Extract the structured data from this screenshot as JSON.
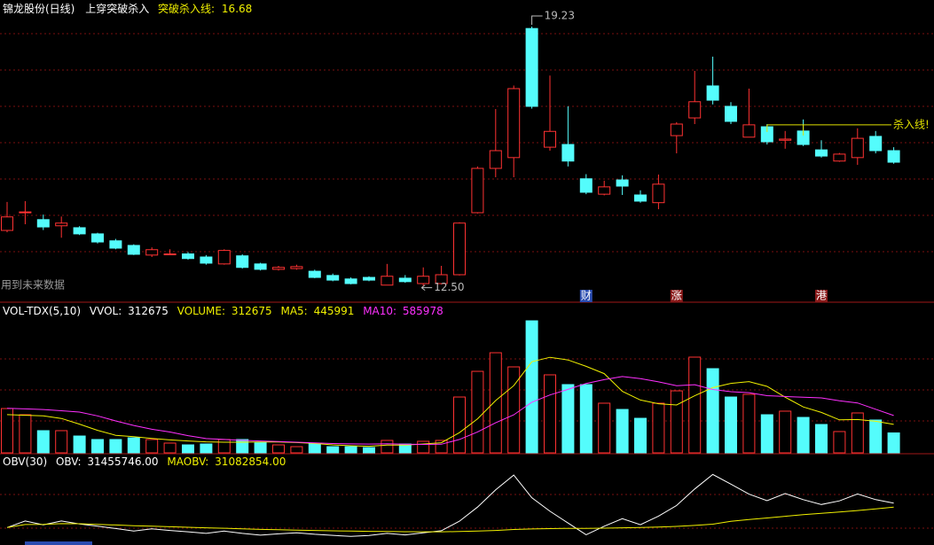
{
  "chart_data": [
    {
      "type": "candlestick",
      "title": "锦龙股份(日线)",
      "indicator": "上穿突破杀入",
      "kill_line_label": "突破杀入线:",
      "kill_line": 16.68,
      "kill_line_text": "杀入线!",
      "note": "用到未来数据",
      "high_label": "19.23",
      "low_label": "12.50",
      "up_color": "#ff3232",
      "down_color": "#54fcfc",
      "ylim": [
        12.1,
        19.92
      ],
      "open": [
        13.94,
        14.4,
        14.22,
        14.06,
        14.01,
        13.85,
        13.67,
        13.55,
        13.3,
        13.32,
        13.33,
        13.25,
        13.07,
        13.28,
        13.07,
        12.93,
        12.95,
        12.88,
        12.77,
        12.68,
        12.72,
        12.52,
        12.7,
        12.56,
        12.56,
        12.79,
        14.4,
        15.55,
        15.83,
        19.18,
        16.1,
        16.17,
        15.28,
        14.88,
        15.25,
        14.86,
        14.66,
        16.4,
        16.86,
        17.69,
        17.16,
        16.36,
        16.63,
        16.28,
        16.52,
        16.03,
        15.74,
        15.83,
        16.38,
        16.01
      ],
      "high": [
        14.68,
        14.7,
        14.35,
        14.3,
        14.05,
        13.88,
        13.72,
        13.58,
        13.5,
        13.45,
        13.38,
        13.3,
        13.45,
        13.32,
        13.1,
        13.02,
        13.05,
        12.92,
        12.82,
        12.72,
        12.75,
        13.07,
        12.78,
        12.98,
        13.02,
        14.15,
        15.6,
        17.09,
        17.7,
        19.23,
        17.96,
        17.16,
        15.4,
        15.23,
        15.37,
        14.98,
        15.39,
        16.75,
        18.08,
        18.45,
        17.27,
        17.62,
        16.7,
        16.52,
        16.82,
        16.28,
        15.95,
        16.59,
        16.52,
        16.1
      ],
      "low": [
        13.89,
        14.1,
        13.95,
        13.75,
        13.82,
        13.6,
        13.45,
        13.3,
        13.25,
        13.3,
        13.18,
        13.05,
        13.05,
        12.95,
        12.9,
        12.9,
        12.92,
        12.7,
        12.62,
        12.54,
        12.62,
        12.52,
        12.58,
        12.5,
        12.54,
        12.77,
        14.38,
        15.32,
        15.32,
        17.1,
        16.01,
        15.6,
        14.88,
        14.85,
        14.86,
        14.66,
        14.49,
        15.94,
        16.7,
        17.21,
        16.7,
        16.36,
        16.17,
        16.06,
        16.13,
        15.83,
        15.72,
        15.64,
        15.94,
        15.67
      ],
      "close": [
        14.29,
        14.42,
        14.03,
        14.13,
        13.85,
        13.64,
        13.48,
        13.32,
        13.44,
        13.33,
        13.21,
        13.09,
        13.42,
        12.98,
        12.93,
        12.98,
        13.0,
        12.72,
        12.65,
        12.56,
        12.65,
        12.75,
        12.61,
        12.75,
        12.79,
        14.13,
        15.55,
        16.01,
        17.62,
        17.16,
        16.51,
        15.74,
        14.93,
        15.07,
        15.09,
        14.7,
        15.14,
        16.7,
        17.28,
        17.32,
        16.77,
        16.68,
        16.24,
        16.31,
        16.17,
        15.87,
        15.92,
        16.33,
        16.01,
        15.71
      ],
      "events": [
        null,
        null,
        null,
        null,
        null,
        null,
        null,
        null,
        null,
        null,
        null,
        null,
        null,
        null,
        null,
        null,
        null,
        null,
        null,
        null,
        null,
        null,
        null,
        null,
        null,
        null,
        null,
        null,
        null,
        null,
        null,
        null,
        {
          "label": "财",
          "color": "#2a4cb0"
        },
        null,
        null,
        null,
        null,
        {
          "label": "涨",
          "color": "#8a1a1a"
        },
        null,
        null,
        null,
        null,
        null,
        null,
        null,
        {
          "label": "港",
          "color": "#8a1a1a"
        },
        null,
        null,
        null,
        null
      ]
    },
    {
      "type": "volume",
      "indicator": "VOL-TDX(5,10)",
      "vvol_label": "VVOL:",
      "vvol": 312675,
      "volume_label": "VOLUME:",
      "volume": 312675,
      "ylim": [
        0,
        2100000
      ],
      "values": [
        695000,
        598000,
        348000,
        348000,
        264000,
        209000,
        209000,
        236000,
        209000,
        153000,
        125000,
        139000,
        209000,
        209000,
        167000,
        125000,
        97000,
        139000,
        97000,
        97000,
        83000,
        195000,
        139000,
        181000,
        195000,
        876000,
        1279000,
        1571000,
        1349000,
        2072000,
        1224000,
        1071000,
        1071000,
        779000,
        681000,
        542000,
        779000,
        973000,
        1502000,
        1321000,
        876000,
        918000,
        598000,
        654000,
        556000,
        445000,
        334000,
        626000,
        515000,
        312675
      ],
      "series": [
        {
          "name": "MA5:",
          "label": 445991,
          "color": "#f0f000",
          "values": [
            600000,
            590000,
            580000,
            540000,
            451000,
            353000,
            276000,
            253000,
            225000,
            203000,
            186000,
            172000,
            167000,
            167000,
            170000,
            170000,
            161000,
            147000,
            125000,
            111000,
            103000,
            122000,
            122000,
            139000,
            159000,
            317000,
            534000,
            820000,
            1054000,
            1429000,
            1499000,
            1457000,
            1357000,
            1243000,
            965000,
            829000,
            770000,
            751000,
            895000,
            1023000,
            1090000,
            1118000,
            1043000,
            873000,
            720000,
            634000,
            517000,
            523000,
            495000,
            445991
          ]
        },
        {
          "name": "MA10:",
          "label": 585978,
          "color": "#ff30ff",
          "values": [
            700000,
            690000,
            680000,
            660000,
            640000,
            580000,
            500000,
            430000,
            370000,
            327000,
            270000,
            224000,
            210000,
            196000,
            187000,
            178000,
            167000,
            157000,
            146000,
            141000,
            137000,
            142000,
            135000,
            132000,
            135000,
            210000,
            328000,
            471000,
            597000,
            794000,
            908000,
            996000,
            1089000,
            1149000,
            1197000,
            1164000,
            1114000,
            1054000,
            1069000,
            994000,
            960000,
            944000,
            897000,
            884000,
            872000,
            862000,
            818000,
            783000,
            684000,
            585978
          ]
        }
      ]
    },
    {
      "type": "line",
      "indicator": "OBV(30)",
      "ylim": [
        28200000,
        34500000
      ],
      "series": [
        {
          "name": "OBV:",
          "label": "31455746.00",
          "color": "#ffffff",
          "values": [
            29224000,
            29822000,
            29474000,
            29822000,
            29558000,
            29349000,
            29140000,
            28904000,
            29113000,
            28960000,
            28835000,
            28696000,
            28905000,
            28696000,
            28529000,
            28654000,
            28751000,
            28612000,
            28515000,
            28418000,
            28501000,
            28696000,
            28557000,
            28738000,
            28933000,
            29809000,
            31088000,
            32659000,
            34008000,
            31936000,
            30712000,
            29641000,
            28570000,
            29349000,
            30030000,
            29488000,
            30267000,
            31240000,
            32742000,
            34063000,
            33187000,
            32269000,
            31671000,
            32325000,
            31769000,
            31324000,
            31658000,
            32284000,
            31769000,
            31455746
          ]
        },
        {
          "name": "MAOBV:",
          "label": "31082854.00",
          "color": "#f0f000",
          "values": [
            29224000,
            29500000,
            29520000,
            29580000,
            29570000,
            29520000,
            29460000,
            29390000,
            29350000,
            29300000,
            29250000,
            29200000,
            29160000,
            29110000,
            29060000,
            29020000,
            28990000,
            28960000,
            28930000,
            28900000,
            28880000,
            28860000,
            28850000,
            28840000,
            28840000,
            28860000,
            28900000,
            28960000,
            29050000,
            29100000,
            29130000,
            29150000,
            29150000,
            29170000,
            29200000,
            29230000,
            29270000,
            29330000,
            29420000,
            29530000,
            29800000,
            29950000,
            30100000,
            30250000,
            30400000,
            30530000,
            30650000,
            30780000,
            30920000,
            31082854
          ]
        }
      ]
    }
  ]
}
